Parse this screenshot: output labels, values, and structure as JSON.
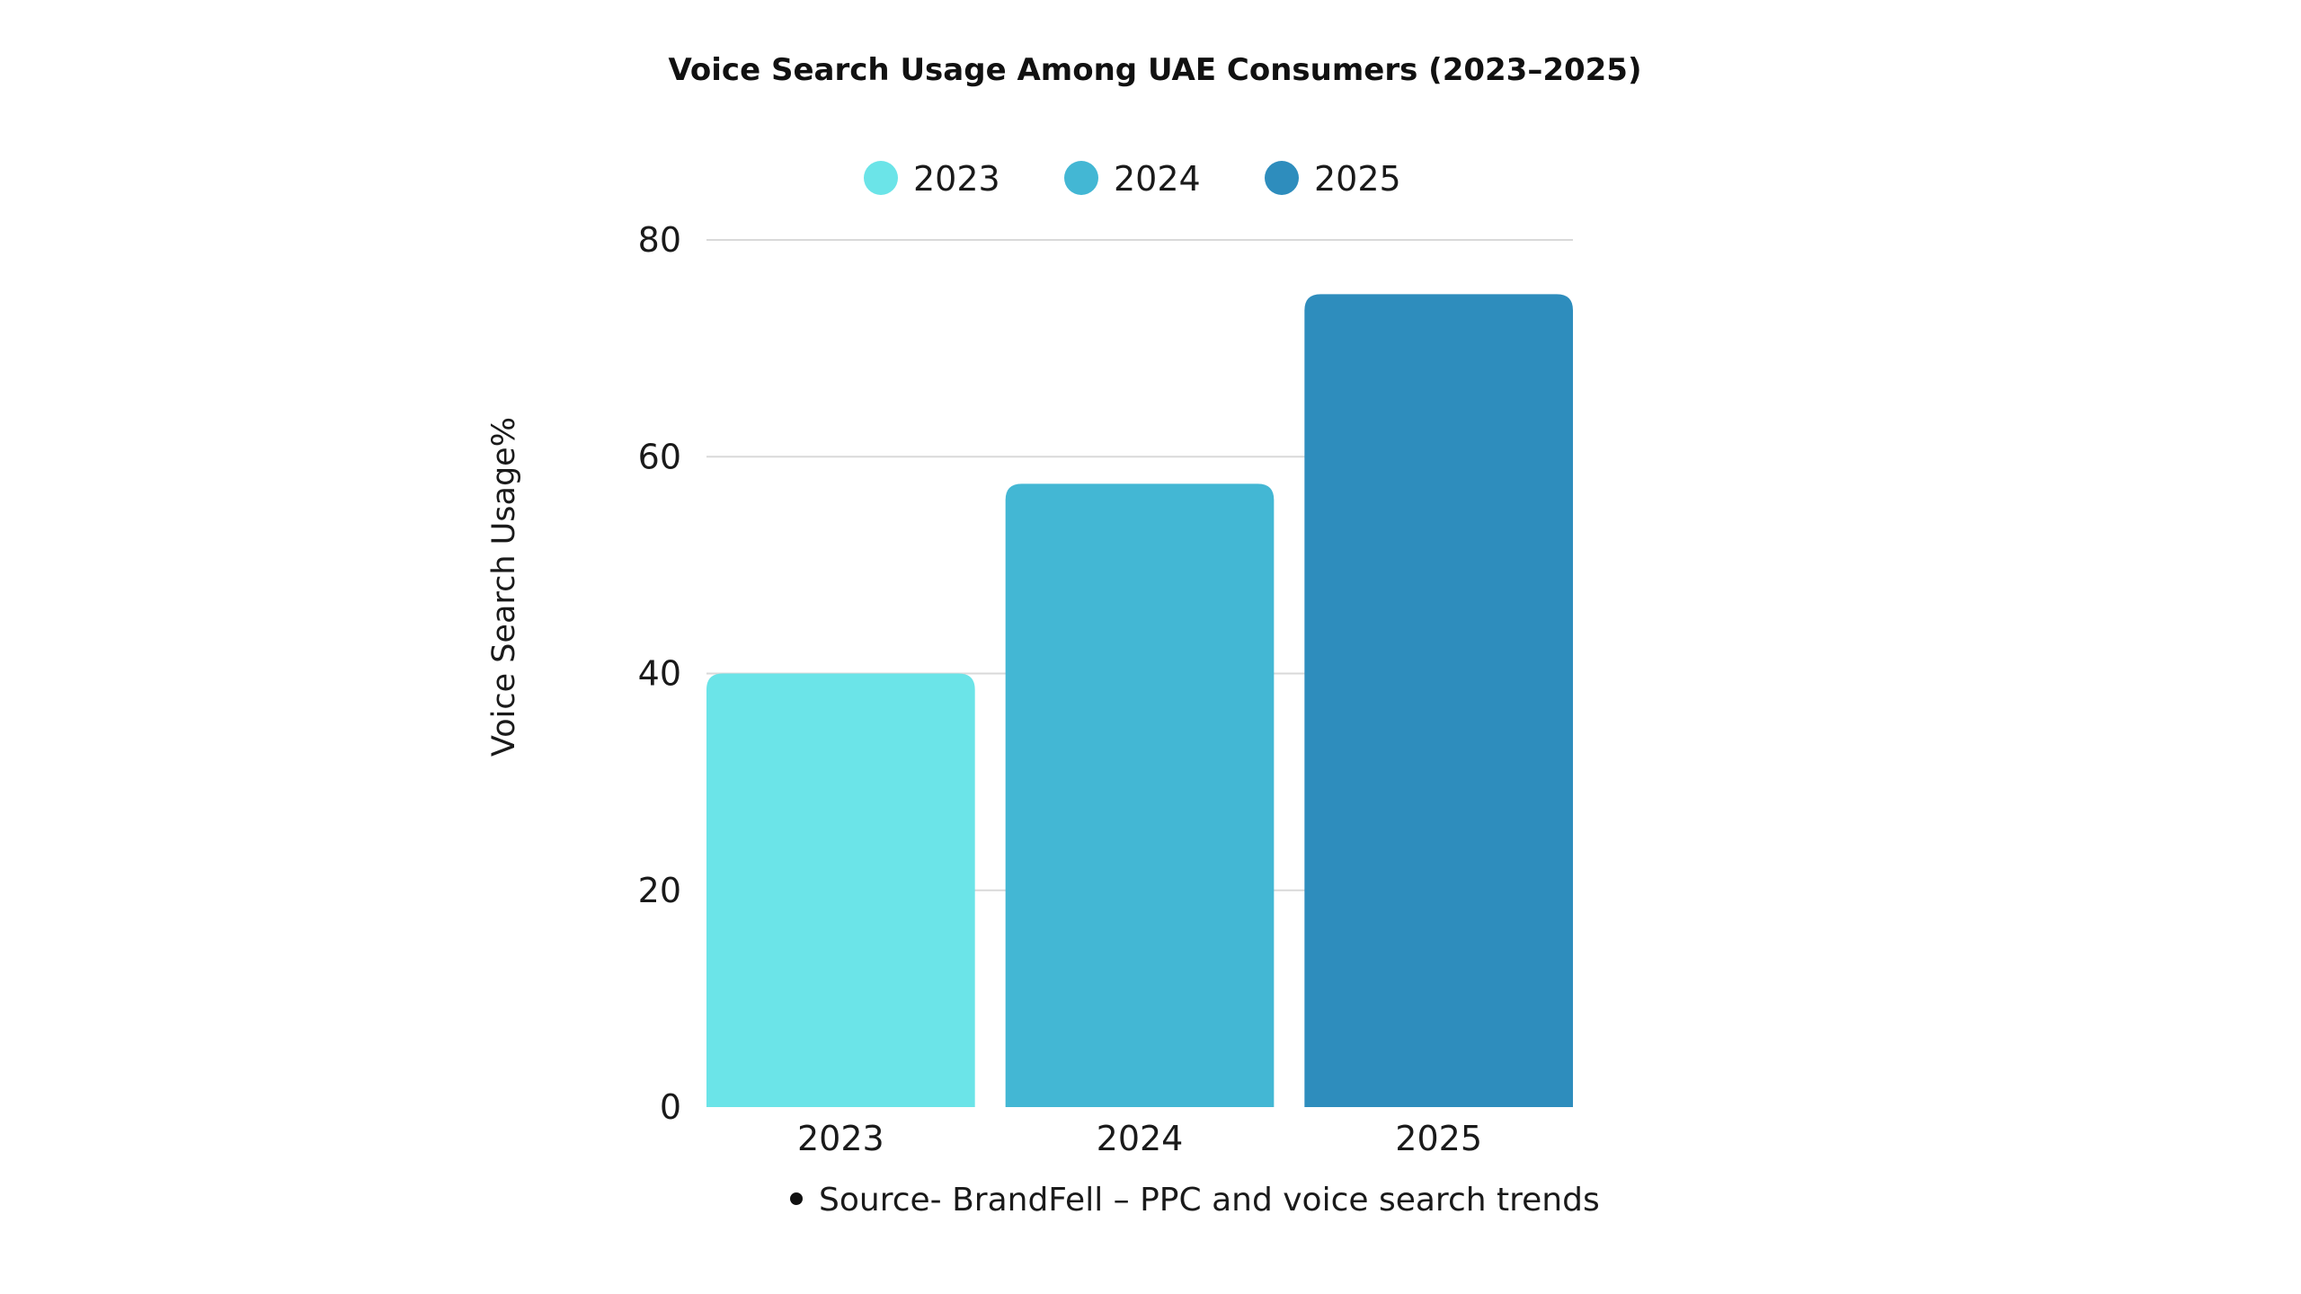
{
  "chart_data": {
    "type": "bar",
    "title": "Voice Search Usage Among UAE Consumers (2023–2025)",
    "xlabel": "",
    "ylabel": "Voice Search Usage%",
    "categories": [
      "2023",
      "2024",
      "2025"
    ],
    "values": [
      40,
      57.5,
      75
    ],
    "colors": [
      "#6be4e8",
      "#43b7d4",
      "#2e8dbd"
    ],
    "ylim": [
      0,
      80
    ],
    "yticks": [
      "0",
      "20",
      "40",
      "60",
      "80"
    ],
    "ytick_values": [
      0,
      20,
      40,
      60,
      80
    ],
    "grid": true,
    "legend_position": "top",
    "legend": [
      {
        "label": "2023",
        "color": "#6be4e8"
      },
      {
        "label": "2024",
        "color": "#43b7d4"
      },
      {
        "label": "2025",
        "color": "#2e8dbd"
      }
    ]
  },
  "source_note": "Source- BrandFell – PPC and voice search trends"
}
